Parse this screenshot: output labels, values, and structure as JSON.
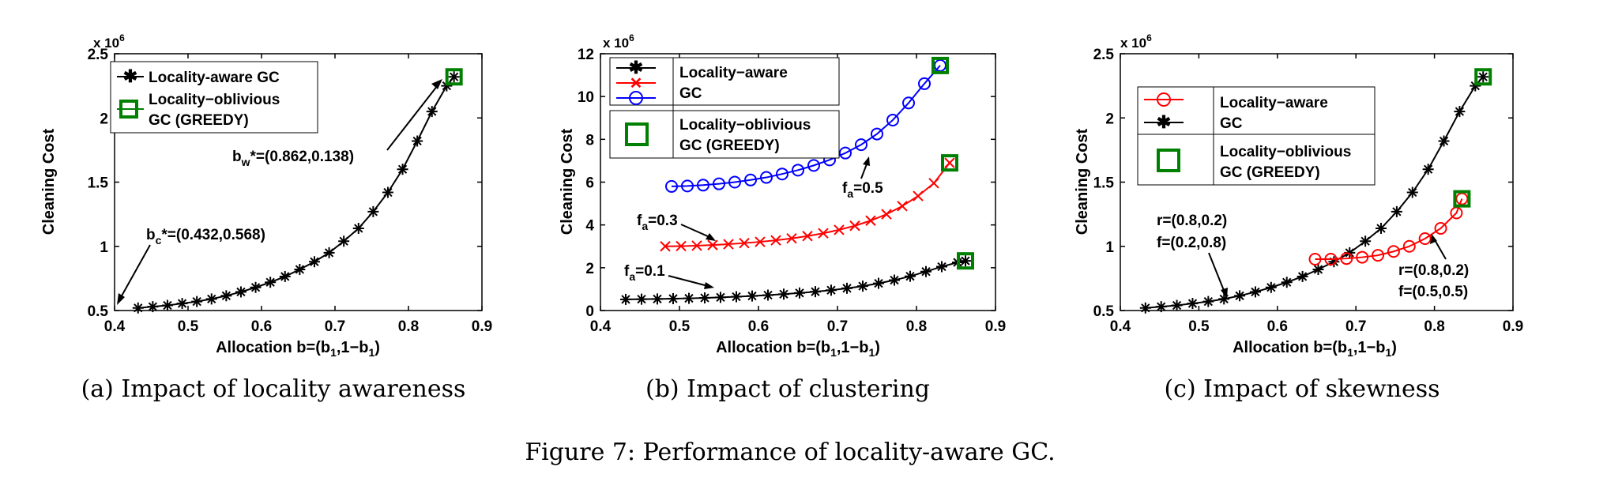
{
  "figure_caption": "Figure 7: Performance of locality-aware GC.",
  "colors": {
    "black": "#000000",
    "red": "#ff0000",
    "blue": "#0000ff",
    "green": "#008000"
  },
  "icons": {
    "star": "asterisk-marker",
    "cross": "x-marker",
    "circle": "circle-marker",
    "square": "square-marker"
  },
  "chart_data": [
    {
      "type": "line",
      "caption": "(a) Impact of locality awareness",
      "xlabel": "Allocation b=(b1,1-b1)",
      "ylabel": "Cleaning Cost",
      "multiplier": "x 10^6",
      "xlim": [
        0.4,
        0.9
      ],
      "ylim": [
        0.5,
        2.5
      ],
      "xticks": [
        "0.4",
        "0.5",
        "0.6",
        "0.7",
        "0.8",
        "0.9"
      ],
      "yticks": [
        "0.5",
        "1",
        "1.5",
        "2",
        "2.5"
      ],
      "legend": {
        "position": "top-left",
        "entries": [
          "Locality-aware GC",
          "Locality-oblivious GC (GREEDY)"
        ]
      },
      "series": [
        {
          "name": "Locality-aware GC",
          "color": "#000000",
          "marker": "star",
          "x": [
            0.432,
            0.452,
            0.472,
            0.492,
            0.512,
            0.532,
            0.552,
            0.572,
            0.592,
            0.612,
            0.632,
            0.652,
            0.672,
            0.692,
            0.712,
            0.732,
            0.752,
            0.772,
            0.792,
            0.812,
            0.832,
            0.852,
            0.862
          ],
          "y": [
            0.52,
            0.53,
            0.54,
            0.555,
            0.57,
            0.59,
            0.615,
            0.645,
            0.68,
            0.72,
            0.765,
            0.82,
            0.88,
            0.95,
            1.04,
            1.14,
            1.27,
            1.42,
            1.6,
            1.82,
            2.05,
            2.25,
            2.32
          ]
        },
        {
          "name": "Locality-oblivious GC (GREEDY)",
          "color": "#008000",
          "marker": "square",
          "x": [
            0.862
          ],
          "y": [
            2.32
          ]
        }
      ],
      "annotations": [
        {
          "text": "bc*=(0.432,0.568)",
          "x": 0.432,
          "y": 0.52
        },
        {
          "text": "bw*=(0.862,0.138)",
          "x": 0.862,
          "y": 2.32
        }
      ]
    },
    {
      "type": "line",
      "caption": "(b) Impact of clustering",
      "xlabel": "Allocation b=(b1,1-b1)",
      "ylabel": "Cleaning Cost",
      "multiplier": "x 10^6",
      "xlim": [
        0.4,
        0.9
      ],
      "ylim": [
        0,
        12
      ],
      "xticks": [
        "0.4",
        "0.5",
        "0.6",
        "0.7",
        "0.8",
        "0.9"
      ],
      "yticks": [
        "0",
        "2",
        "4",
        "6",
        "8",
        "10",
        "12"
      ],
      "legend": {
        "position": "top-left",
        "entries": [
          "Locality-aware GC",
          "Locality-oblivious GC (GREEDY)"
        ]
      },
      "series": [
        {
          "name": "fa=0.5",
          "color": "#0000ff",
          "marker": "circle",
          "x": [
            0.49,
            0.51,
            0.53,
            0.55,
            0.57,
            0.59,
            0.61,
            0.63,
            0.65,
            0.67,
            0.69,
            0.71,
            0.73,
            0.75,
            0.77,
            0.79,
            0.81,
            0.83
          ],
          "y": [
            5.8,
            5.82,
            5.86,
            5.92,
            6.0,
            6.1,
            6.22,
            6.38,
            6.56,
            6.78,
            7.04,
            7.36,
            7.75,
            8.25,
            8.9,
            9.7,
            10.6,
            11.45
          ]
        },
        {
          "name": "fa=0.3",
          "color": "#ff0000",
          "marker": "cross",
          "x": [
            0.482,
            0.502,
            0.522,
            0.542,
            0.562,
            0.582,
            0.602,
            0.622,
            0.642,
            0.662,
            0.682,
            0.702,
            0.722,
            0.742,
            0.762,
            0.782,
            0.802,
            0.822,
            0.842
          ],
          "y": [
            3.0,
            3.01,
            3.03,
            3.06,
            3.1,
            3.15,
            3.21,
            3.28,
            3.37,
            3.48,
            3.61,
            3.77,
            3.96,
            4.2,
            4.5,
            4.88,
            5.35,
            5.95,
            6.9
          ]
        },
        {
          "name": "fa=0.1",
          "color": "#000000",
          "marker": "star",
          "x": [
            0.432,
            0.452,
            0.472,
            0.492,
            0.512,
            0.532,
            0.552,
            0.572,
            0.592,
            0.612,
            0.632,
            0.652,
            0.672,
            0.692,
            0.712,
            0.732,
            0.752,
            0.772,
            0.792,
            0.812,
            0.832,
            0.852,
            0.862
          ],
          "y": [
            0.52,
            0.53,
            0.54,
            0.555,
            0.57,
            0.59,
            0.615,
            0.645,
            0.68,
            0.72,
            0.765,
            0.82,
            0.88,
            0.95,
            1.04,
            1.14,
            1.27,
            1.42,
            1.6,
            1.82,
            2.05,
            2.25,
            2.32
          ]
        },
        {
          "name": "GREEDY",
          "color": "#008000",
          "marker": "square",
          "x": [
            0.83,
            0.842,
            0.862
          ],
          "y": [
            11.45,
            6.9,
            2.32
          ]
        }
      ],
      "annotations": [
        {
          "text": "fa=0.5",
          "x": 0.72,
          "y": 7.36
        },
        {
          "text": "fa=0.3",
          "x": 0.56,
          "y": 3.1
        },
        {
          "text": "fa=0.1",
          "x": 0.67,
          "y": 1.0
        }
      ]
    },
    {
      "type": "line",
      "caption": "(c) Impact of skewness",
      "xlabel": "Allocation b=(b1,1-b1)",
      "ylabel": "Cleaning Cost",
      "multiplier": "x 10^6",
      "xlim": [
        0.4,
        0.9
      ],
      "ylim": [
        0.5,
        2.5
      ],
      "xticks": [
        "0.4",
        "0.5",
        "0.6",
        "0.7",
        "0.8",
        "0.9"
      ],
      "yticks": [
        "0.5",
        "1",
        "1.5",
        "2",
        "2.5"
      ],
      "legend": {
        "position": "top-left",
        "entries": [
          "Locality-aware GC",
          "Locality-oblivious GC (GREEDY)"
        ]
      },
      "series": [
        {
          "name": "r=(0.8,0.2) f=(0.2,0.8)",
          "color": "#000000",
          "marker": "star",
          "x": [
            0.432,
            0.452,
            0.472,
            0.492,
            0.512,
            0.532,
            0.552,
            0.572,
            0.592,
            0.612,
            0.632,
            0.652,
            0.672,
            0.692,
            0.712,
            0.732,
            0.752,
            0.772,
            0.792,
            0.812,
            0.832,
            0.852,
            0.862
          ],
          "y": [
            0.52,
            0.53,
            0.54,
            0.555,
            0.57,
            0.59,
            0.615,
            0.645,
            0.68,
            0.72,
            0.765,
            0.82,
            0.88,
            0.95,
            1.04,
            1.14,
            1.27,
            1.42,
            1.6,
            1.82,
            2.05,
            2.25,
            2.32
          ]
        },
        {
          "name": "r=(0.8,0.2) f=(0.5,0.5)",
          "color": "#ff0000",
          "marker": "circle",
          "x": [
            0.648,
            0.668,
            0.688,
            0.708,
            0.728,
            0.748,
            0.768,
            0.788,
            0.808,
            0.828,
            0.835
          ],
          "y": [
            0.9,
            0.9,
            0.905,
            0.915,
            0.93,
            0.96,
            1.0,
            1.06,
            1.14,
            1.26,
            1.37
          ]
        },
        {
          "name": "GREEDY",
          "color": "#008000",
          "marker": "square",
          "x": [
            0.835,
            0.862
          ],
          "y": [
            1.37,
            2.32
          ]
        }
      ],
      "annotations": [
        {
          "text": "r=(0.8,0.2)",
          "x": 0.53,
          "y": 0.58
        },
        {
          "text": "f=(0.2,0.8)",
          "x": 0.53,
          "y": 0.58
        },
        {
          "text": "r=(0.8,0.2)",
          "x": 0.8,
          "y": 1.14
        },
        {
          "text": "f=(0.5,0.5)",
          "x": 0.8,
          "y": 1.14
        }
      ]
    }
  ]
}
